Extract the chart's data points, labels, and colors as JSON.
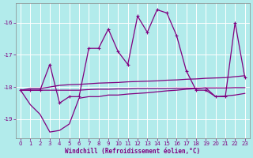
{
  "xlabel": "Windchill (Refroidissement éolien,°C)",
  "bg_color": "#b2ebeb",
  "grid_color": "#ffffff",
  "line_color": "#800080",
  "x": [
    0,
    1,
    2,
    3,
    4,
    5,
    6,
    7,
    8,
    9,
    10,
    11,
    12,
    13,
    14,
    15,
    16,
    17,
    18,
    19,
    20,
    21,
    22,
    23
  ],
  "y_main": [
    -18.1,
    -18.1,
    -18.1,
    -17.3,
    -18.5,
    -18.3,
    -18.3,
    -16.8,
    -16.8,
    -16.2,
    -16.9,
    -17.3,
    -15.8,
    -16.3,
    -15.6,
    -15.7,
    -16.4,
    -17.5,
    -18.1,
    -18.1,
    -18.3,
    -18.3,
    -16.0,
    -17.7
  ],
  "y_low": [
    -18.1,
    -18.55,
    -18.85,
    -19.4,
    -19.35,
    -19.15,
    -18.35,
    -18.3,
    -18.3,
    -18.25,
    -18.25,
    -18.22,
    -18.2,
    -18.18,
    -18.15,
    -18.12,
    -18.1,
    -18.07,
    -18.05,
    -18.03,
    -18.3,
    -18.28,
    -18.25,
    -18.2
  ],
  "y_mid1": [
    -18.1,
    -18.1,
    -18.1,
    -18.1,
    -18.1,
    -18.1,
    -18.1,
    -18.08,
    -18.07,
    -18.07,
    -18.06,
    -18.06,
    -18.05,
    -18.05,
    -18.05,
    -18.05,
    -18.04,
    -18.04,
    -18.04,
    -18.03,
    -18.03,
    -18.03,
    -18.02,
    -18.02
  ],
  "y_mid2": [
    -18.1,
    -18.05,
    -18.05,
    -18.0,
    -17.95,
    -17.93,
    -17.92,
    -17.9,
    -17.88,
    -17.87,
    -17.86,
    -17.84,
    -17.83,
    -17.82,
    -17.81,
    -17.79,
    -17.78,
    -17.76,
    -17.75,
    -17.73,
    -17.72,
    -17.71,
    -17.68,
    -17.65
  ],
  "ylim": [
    -19.6,
    -15.4
  ],
  "yticks": [
    -19,
    -18,
    -17,
    -16
  ],
  "xlim": [
    -0.5,
    23.5
  ],
  "label_fontsize": 5.5,
  "tick_fontsize": 5.0
}
